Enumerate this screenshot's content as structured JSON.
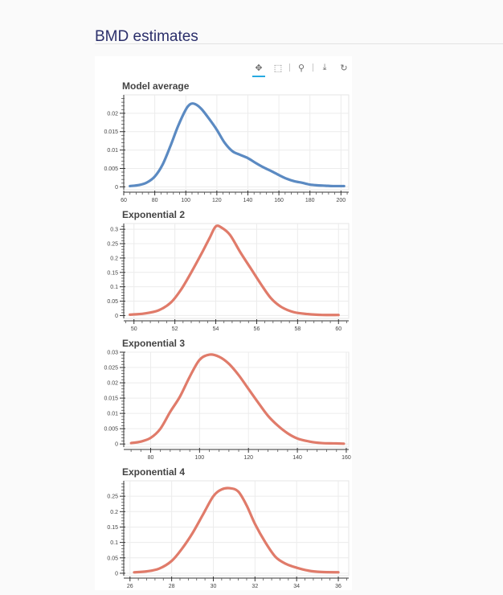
{
  "page": {
    "title": "BMD estimates"
  },
  "toolbar": {
    "tools": [
      {
        "name": "pan-tool",
        "glyph": "✥"
      },
      {
        "name": "box-zoom-tool",
        "glyph": "⬚"
      },
      {
        "name": "wheel-zoom-tool",
        "glyph": "⚲"
      },
      {
        "name": "save-tool",
        "glyph": "⤓"
      },
      {
        "name": "reset-tool",
        "glyph": "↻"
      }
    ]
  },
  "chart_data": [
    {
      "type": "line",
      "title": "Model average",
      "color": "#5b8ac2",
      "xlim": [
        60,
        205
      ],
      "ylim": [
        -0.0008,
        0.025
      ],
      "xticks": [
        60,
        80,
        100,
        120,
        140,
        160,
        180,
        200
      ],
      "yticks": [
        0,
        0.005,
        0.01,
        0.015,
        0.02
      ],
      "ytick_labels": [
        "0",
        "0.005",
        "0.01",
        "0.015",
        "0.02"
      ],
      "x": [
        64,
        70,
        75,
        80,
        85,
        90,
        95,
        100,
        103,
        106,
        110,
        115,
        120,
        125,
        130,
        135,
        140,
        145,
        150,
        155,
        160,
        165,
        170,
        175,
        180,
        185,
        190,
        195,
        202
      ],
      "y": [
        0.0002,
        0.0005,
        0.0012,
        0.0028,
        0.006,
        0.011,
        0.0165,
        0.021,
        0.0225,
        0.0225,
        0.0212,
        0.0185,
        0.0155,
        0.012,
        0.0097,
        0.0087,
        0.0078,
        0.0065,
        0.0053,
        0.0043,
        0.0032,
        0.0022,
        0.0015,
        0.0011,
        0.0006,
        0.0004,
        0.0003,
        0.0002,
        0.0002
      ]
    },
    {
      "type": "line",
      "title": "Exponential 2",
      "color": "#e07b6a",
      "xlim": [
        49.5,
        60.5
      ],
      "ylim": [
        -0.01,
        0.32
      ],
      "xticks": [
        50,
        52,
        54,
        56,
        58,
        60
      ],
      "yticks": [
        0,
        0.05,
        0.1,
        0.15,
        0.2,
        0.25,
        0.3
      ],
      "ytick_labels": [
        "0",
        "0.05",
        "0.1",
        "0.15",
        "0.2",
        "0.25",
        "0.3"
      ],
      "x": [
        49.8,
        50.5,
        51.2,
        51.8,
        52.3,
        52.8,
        53.3,
        53.7,
        54.0,
        54.3,
        54.7,
        55.2,
        55.7,
        56.2,
        56.7,
        57.2,
        57.8,
        58.5,
        59.2,
        60.0
      ],
      "y": [
        0.003,
        0.007,
        0.018,
        0.045,
        0.09,
        0.15,
        0.215,
        0.27,
        0.31,
        0.305,
        0.28,
        0.22,
        0.165,
        0.11,
        0.06,
        0.03,
        0.012,
        0.005,
        0.002,
        0.002
      ]
    },
    {
      "type": "line",
      "title": "Exponential 3",
      "color": "#e07b6a",
      "xlim": [
        69,
        161
      ],
      "ylim": [
        -0.001,
        0.03
      ],
      "xticks": [
        80,
        100,
        120,
        140,
        160
      ],
      "yticks": [
        0,
        0.005,
        0.01,
        0.015,
        0.02,
        0.025,
        0.03
      ],
      "ytick_labels": [
        "0",
        "0.005",
        "0.01",
        "0.015",
        "0.02",
        "0.025",
        "0.03"
      ],
      "x": [
        72,
        76,
        80,
        84,
        88,
        92,
        96,
        100,
        104,
        108,
        112,
        116,
        120,
        124,
        128,
        132,
        136,
        140,
        145,
        150,
        155,
        159
      ],
      "y": [
        0.0003,
        0.0008,
        0.002,
        0.005,
        0.0105,
        0.0155,
        0.022,
        0.0275,
        0.0292,
        0.0285,
        0.0262,
        0.0225,
        0.018,
        0.0135,
        0.0092,
        0.006,
        0.0035,
        0.0018,
        0.0008,
        0.0003,
        0.0002,
        0.0001
      ]
    },
    {
      "type": "line",
      "title": "Exponential 4",
      "color": "#e07b6a",
      "xlim": [
        25.7,
        36.5
      ],
      "ylim": [
        -0.008,
        0.3
      ],
      "xticks": [
        26,
        28,
        30,
        32,
        34,
        36
      ],
      "yticks": [
        0,
        0.05,
        0.1,
        0.15,
        0.2,
        0.25
      ],
      "ytick_labels": [
        "0",
        "0.05",
        "0.1",
        "0.15",
        "0.2",
        "0.25"
      ],
      "x": [
        26.2,
        26.8,
        27.4,
        28.0,
        28.5,
        29.0,
        29.5,
        30.0,
        30.4,
        30.8,
        31.2,
        31.6,
        32.0,
        32.5,
        33.0,
        33.5,
        34.0,
        34.6,
        35.2,
        36.0
      ],
      "y": [
        0.003,
        0.006,
        0.015,
        0.04,
        0.08,
        0.13,
        0.19,
        0.25,
        0.272,
        0.276,
        0.265,
        0.22,
        0.16,
        0.1,
        0.052,
        0.03,
        0.018,
        0.008,
        0.004,
        0.003
      ]
    }
  ]
}
